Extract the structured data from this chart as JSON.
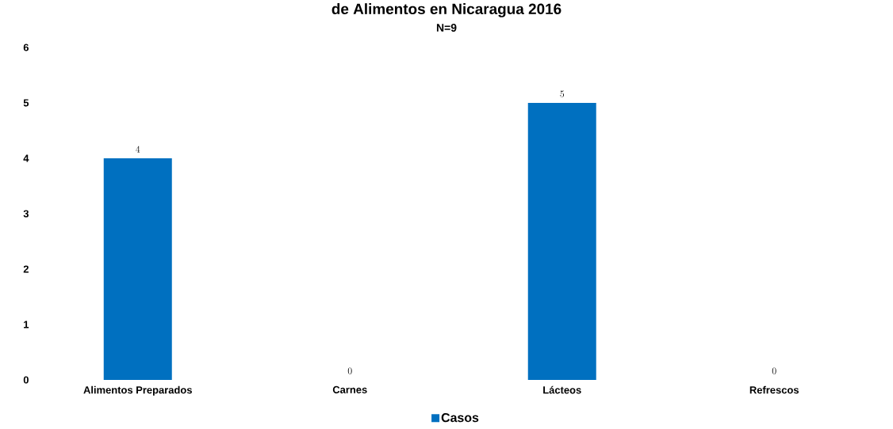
{
  "chart_data": {
    "type": "bar",
    "title": "de Alimentos en Nicaragua 2016",
    "subtitle": "N=9",
    "categories": [
      "Alimentos Preparados",
      "Carnes",
      "Lácteos",
      "Refrescos"
    ],
    "series": [
      {
        "name": "Casos",
        "color": "#0070c0",
        "values": [
          4,
          0,
          5,
          0
        ]
      }
    ],
    "ylim": [
      0,
      6
    ],
    "yticks": [
      0,
      1,
      2,
      3,
      4,
      5,
      6
    ],
    "data_labels": true,
    "legend": "bottom",
    "grid": false
  }
}
